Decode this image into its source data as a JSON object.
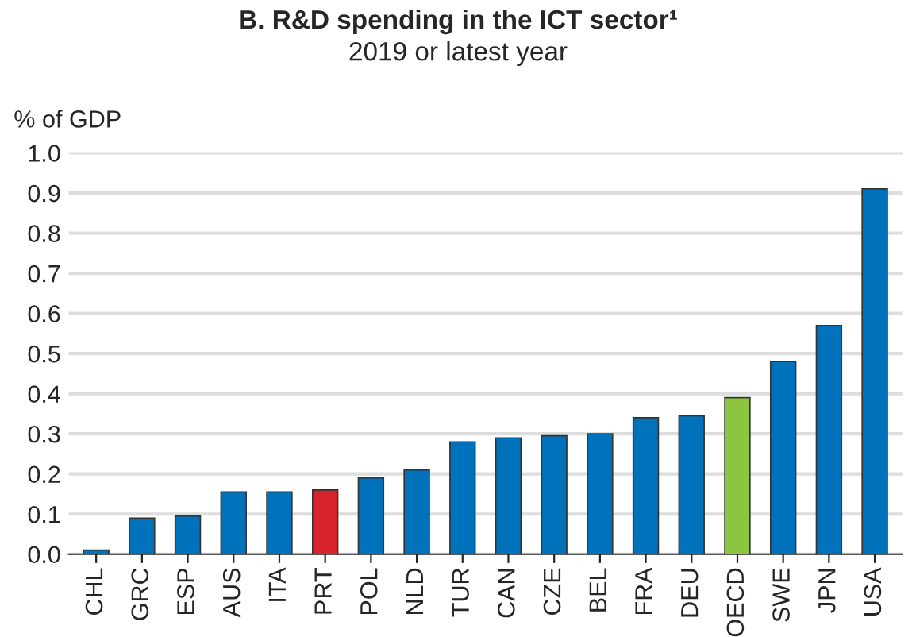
{
  "chart_data": {
    "type": "bar",
    "title": "B. R&D spending in the ICT sector¹",
    "subtitle": "2019 or latest year",
    "ylabel": "% of GDP",
    "categories": [
      "CHL",
      "GRC",
      "ESP",
      "AUS",
      "ITA",
      "PRT",
      "POL",
      "NLD",
      "TUR",
      "CAN",
      "CZE",
      "BEL",
      "FRA",
      "DEU",
      "OECD",
      "SWE",
      "JPN",
      "USA"
    ],
    "values": [
      0.01,
      0.09,
      0.095,
      0.155,
      0.155,
      0.16,
      0.19,
      0.21,
      0.28,
      0.29,
      0.295,
      0.3,
      0.34,
      0.345,
      0.39,
      0.48,
      0.57,
      0.91
    ],
    "colors": [
      "#0072bc",
      "#0072bc",
      "#0072bc",
      "#0072bc",
      "#0072bc",
      "#d7242b",
      "#0072bc",
      "#0072bc",
      "#0072bc",
      "#0072bc",
      "#0072bc",
      "#0072bc",
      "#0072bc",
      "#0072bc",
      "#8cc63f",
      "#0072bc",
      "#0072bc",
      "#0072bc"
    ],
    "ylim": [
      0,
      1.0
    ],
    "yticks": [
      {
        "value": 0,
        "label": "0.0"
      },
      0.1,
      0.2,
      0.3,
      0.4,
      0.5,
      0.6,
      0.7,
      0.8,
      0.9,
      {
        "value": 1.0,
        "label": "1.0"
      }
    ],
    "grid": "y",
    "legend": false
  }
}
